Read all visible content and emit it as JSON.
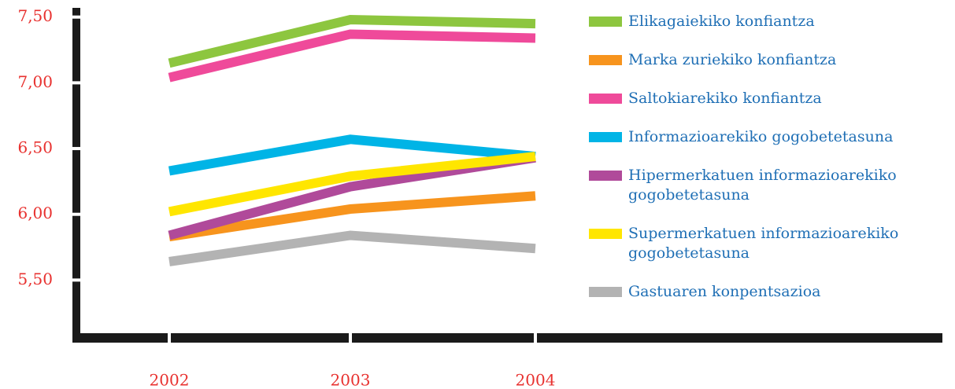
{
  "chart_data": {
    "type": "line",
    "categories": [
      "2002",
      "2003",
      "2004"
    ],
    "series": [
      {
        "name": "Elikagaiekiko konfiantza",
        "color": "#8dc63f",
        "values": [
          7.15,
          7.48,
          7.45
        ]
      },
      {
        "name": "Marka zuriekiko konfiantza",
        "color": "#f7941d",
        "values": [
          5.83,
          6.04,
          6.14
        ]
      },
      {
        "name": "Saltokiarekiko konfiantza",
        "color": "#ef4a9a",
        "values": [
          7.04,
          7.37,
          7.34
        ]
      },
      {
        "name": "Informazioarekiko gogobetetasuna",
        "color": "#00b4e6",
        "values": [
          6.33,
          6.57,
          6.44
        ]
      },
      {
        "name": "Hipermerkatuen informazioarekiko gogobetetasuna",
        "color": "#b04a9a",
        "values": [
          5.84,
          6.21,
          6.43
        ]
      },
      {
        "name": "Supermerkatuen informazioarekiko gogobetetasuna",
        "color": "#ffe600",
        "values": [
          6.02,
          6.29,
          6.44
        ]
      },
      {
        "name": "Gastuaren konpentsazioa",
        "color": "#b3b3b3",
        "values": [
          5.64,
          5.84,
          5.74
        ]
      }
    ],
    "ylim": [
      5.06,
      7.57
    ],
    "yticks": [
      {
        "value": 5.5,
        "label": "5,50"
      },
      {
        "value": 6,
        "label": "6,00"
      },
      {
        "value": 6.5,
        "label": "6,50"
      },
      {
        "value": 7,
        "label": "7,00"
      },
      {
        "value": 7.5,
        "label": "7,50"
      }
    ],
    "legend": "right"
  }
}
